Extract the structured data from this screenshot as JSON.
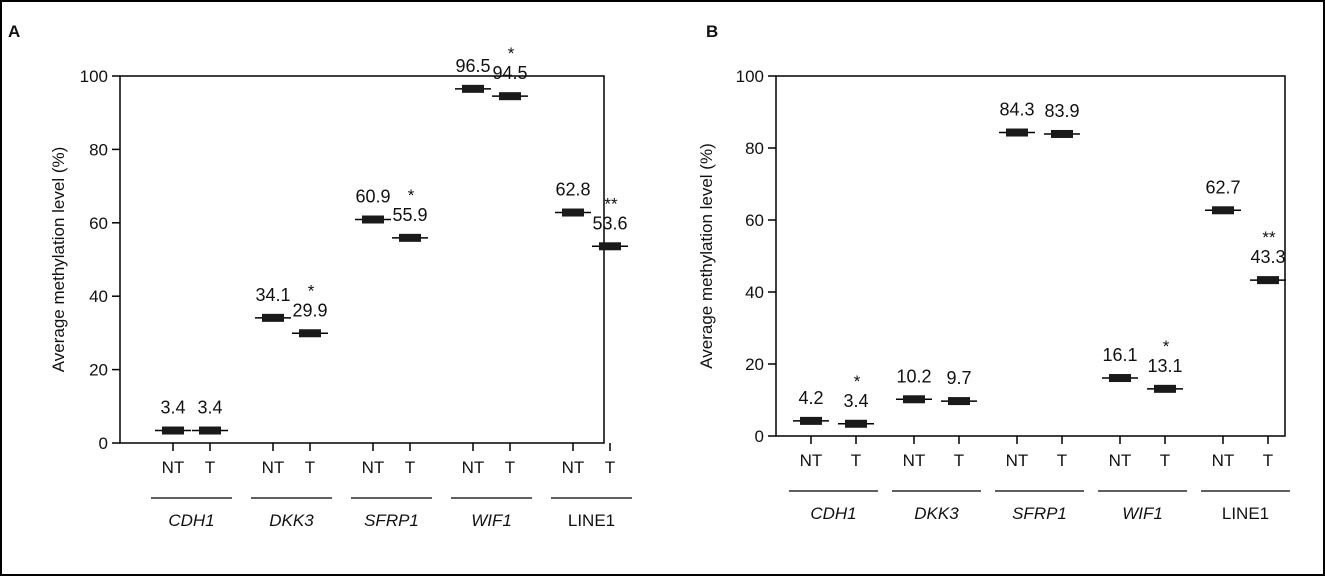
{
  "chart_data": [
    {
      "type": "box",
      "panel": "A",
      "ylabel": "Average methylation level (%)",
      "ylim": [
        0,
        100
      ],
      "yticks": [
        0,
        20,
        40,
        60,
        80,
        100
      ],
      "ytick_labels": [
        "0",
        "20",
        "40",
        "60",
        "80",
        "100"
      ],
      "groups": [
        {
          "gene": "CDH1",
          "italic": true,
          "points": [
            {
              "label": "NT",
              "value": 3.4,
              "value_label": "3.4",
              "sig": ""
            },
            {
              "label": "T",
              "value": 3.4,
              "value_label": "3.4",
              "sig": ""
            }
          ]
        },
        {
          "gene": "DKK3",
          "italic": true,
          "points": [
            {
              "label": "NT",
              "value": 34.1,
              "value_label": "34.1",
              "sig": ""
            },
            {
              "label": "T",
              "value": 29.9,
              "value_label": "29.9",
              "sig": "*"
            }
          ]
        },
        {
          "gene": "SFRP1",
          "italic": true,
          "points": [
            {
              "label": "NT",
              "value": 60.9,
              "value_label": "60.9",
              "sig": ""
            },
            {
              "label": "T",
              "value": 55.9,
              "value_label": "55.9",
              "sig": "*"
            }
          ]
        },
        {
          "gene": "WIF1",
          "italic": true,
          "points": [
            {
              "label": "NT",
              "value": 96.5,
              "value_label": "96.5",
              "sig": ""
            },
            {
              "label": "T",
              "value": 94.5,
              "value_label": "94.5",
              "sig": "*"
            }
          ]
        },
        {
          "gene": "LINE1",
          "italic": false,
          "points": [
            {
              "label": "NT",
              "value": 62.8,
              "value_label": "62.8",
              "sig": ""
            },
            {
              "label": "T",
              "value": 53.6,
              "value_label": "53.6",
              "sig": "**"
            }
          ]
        }
      ]
    },
    {
      "type": "box",
      "panel": "B",
      "ylabel": "Average methylation level (%)",
      "ylim": [
        0,
        100
      ],
      "yticks": [
        0,
        20,
        40,
        60,
        80,
        100
      ],
      "ytick_labels": [
        "0",
        "20",
        "40",
        "60",
        "80",
        "100"
      ],
      "groups": [
        {
          "gene": "CDH1",
          "italic": true,
          "points": [
            {
              "label": "NT",
              "value": 4.2,
              "value_label": "4.2",
              "sig": ""
            },
            {
              "label": "T",
              "value": 3.4,
              "value_label": "3.4",
              "sig": "*"
            }
          ]
        },
        {
          "gene": "DKK3",
          "italic": true,
          "points": [
            {
              "label": "NT",
              "value": 10.2,
              "value_label": "10.2",
              "sig": ""
            },
            {
              "label": "T",
              "value": 9.7,
              "value_label": "9.7",
              "sig": ""
            }
          ]
        },
        {
          "gene": "SFRP1",
          "italic": true,
          "points": [
            {
              "label": "NT",
              "value": 84.3,
              "value_label": "84.3",
              "sig": ""
            },
            {
              "label": "T",
              "value": 83.9,
              "value_label": "83.9",
              "sig": ""
            }
          ]
        },
        {
          "gene": "WIF1",
          "italic": true,
          "points": [
            {
              "label": "NT",
              "value": 16.1,
              "value_label": "16.1",
              "sig": ""
            },
            {
              "label": "T",
              "value": 13.1,
              "value_label": "13.1",
              "sig": "*"
            }
          ]
        },
        {
          "gene": "LINE1",
          "italic": false,
          "points": [
            {
              "label": "NT",
              "value": 62.7,
              "value_label": "62.7",
              "sig": ""
            },
            {
              "label": "T",
              "value": 43.3,
              "value_label": "43.3",
              "sig": "**"
            }
          ]
        }
      ]
    }
  ]
}
